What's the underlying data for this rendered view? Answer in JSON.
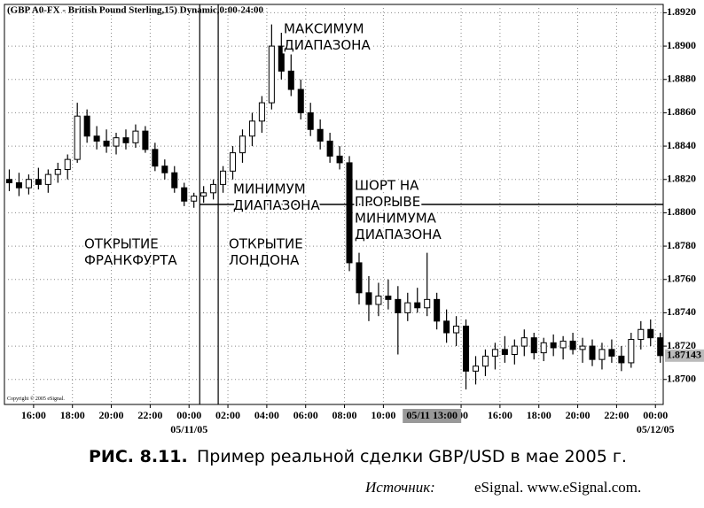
{
  "chart_data": {
    "type": "candlestick",
    "title": "(GBP A0-FX - British Pound Sterling,15) Dynamic,0:00-24:00",
    "copyright": "Copyright © 2005 eSignal.",
    "x": [
      14.75,
      15.25,
      15.75,
      16.25,
      16.75,
      17.25,
      17.75,
      18.25,
      18.75,
      19.25,
      19.75,
      20.25,
      20.75,
      21.25,
      21.75,
      22.25,
      22.75,
      23.25,
      23.75,
      24.25,
      24.75,
      25.25,
      25.75,
      26.25,
      26.75,
      27.25,
      27.75,
      28.25,
      28.75,
      29.25,
      29.75,
      30.25,
      30.75,
      31.25,
      31.75,
      32.25,
      32.75,
      33.25,
      33.75,
      34.25,
      34.75,
      35.25,
      35.75,
      36.25,
      36.75,
      37.25,
      37.75,
      38.25,
      38.75,
      39.25,
      39.75,
      40.25,
      40.75,
      41.25,
      41.75,
      42.25,
      42.75,
      43.25,
      43.75,
      44.25,
      44.75,
      45.25,
      45.75,
      46.25,
      46.75,
      47.25,
      47.75,
      48.25
    ],
    "open": [
      1.882,
      1.8818,
      1.8815,
      1.882,
      1.8817,
      1.8823,
      1.8826,
      1.8832,
      1.8858,
      1.8846,
      1.8843,
      1.884,
      1.8845,
      1.8842,
      1.8849,
      1.8838,
      1.8828,
      1.8824,
      1.8815,
      1.8807,
      1.881,
      1.8812,
      1.8817,
      1.8825,
      1.8836,
      1.8846,
      1.8855,
      1.8866,
      1.89,
      1.8885,
      1.8874,
      1.886,
      1.885,
      1.8843,
      1.8834,
      1.883,
      1.877,
      1.8752,
      1.8745,
      1.875,
      1.8748,
      1.874,
      1.8746,
      1.8743,
      1.8748,
      1.8735,
      1.8728,
      1.8732,
      1.8705,
      1.8708,
      1.8714,
      1.8718,
      1.8715,
      1.872,
      1.8725,
      1.8716,
      1.8722,
      1.8719,
      1.8723,
      1.8718,
      1.872,
      1.8712,
      1.8718,
      1.8714,
      1.871,
      1.8724,
      1.873,
      1.8725
    ],
    "high": [
      1.8826,
      1.8824,
      1.8823,
      1.8827,
      1.8826,
      1.883,
      1.8835,
      1.8866,
      1.8862,
      1.8852,
      1.885,
      1.8848,
      1.885,
      1.8853,
      1.8852,
      1.8842,
      1.8832,
      1.8828,
      1.8818,
      1.8812,
      1.8816,
      1.882,
      1.8828,
      1.884,
      1.885,
      1.886,
      1.887,
      1.8913,
      1.8908,
      1.8895,
      1.888,
      1.8866,
      1.8856,
      1.8848,
      1.884,
      1.8834,
      1.8776,
      1.8762,
      1.8758,
      1.876,
      1.8756,
      1.8752,
      1.8755,
      1.8776,
      1.8752,
      1.8742,
      1.8738,
      1.8736,
      1.8714,
      1.8718,
      1.8722,
      1.8726,
      1.8724,
      1.873,
      1.8728,
      1.8725,
      1.8727,
      1.8726,
      1.8728,
      1.8725,
      1.8724,
      1.8722,
      1.8724,
      1.872,
      1.8728,
      1.8735,
      1.8736,
      1.8728
    ],
    "low": [
      1.8813,
      1.881,
      1.8811,
      1.8814,
      1.8812,
      1.8818,
      1.882,
      1.883,
      1.8842,
      1.8838,
      1.8836,
      1.8835,
      1.8838,
      1.8839,
      1.8836,
      1.8825,
      1.882,
      1.8812,
      1.8804,
      1.8803,
      1.8806,
      1.8808,
      1.8812,
      1.882,
      1.883,
      1.884,
      1.8848,
      1.8862,
      1.888,
      1.887,
      1.8856,
      1.8846,
      1.8838,
      1.883,
      1.8826,
      1.8765,
      1.8745,
      1.8735,
      1.8738,
      1.8742,
      1.8715,
      1.8735,
      1.874,
      1.8738,
      1.873,
      1.8722,
      1.872,
      1.8694,
      1.8697,
      1.8702,
      1.8706,
      1.871,
      1.8709,
      1.8714,
      1.8712,
      1.8711,
      1.8714,
      1.8712,
      1.8715,
      1.871,
      1.8708,
      1.8706,
      1.871,
      1.8705,
      1.8707,
      1.8718,
      1.872,
      1.871
    ],
    "close": [
      1.8818,
      1.8815,
      1.882,
      1.8817,
      1.8823,
      1.8826,
      1.8832,
      1.8858,
      1.8846,
      1.8843,
      1.884,
      1.8845,
      1.8842,
      1.8849,
      1.8838,
      1.8828,
      1.8824,
      1.8815,
      1.8807,
      1.881,
      1.8812,
      1.8817,
      1.8825,
      1.8836,
      1.8846,
      1.8855,
      1.8866,
      1.89,
      1.8885,
      1.8874,
      1.886,
      1.885,
      1.8843,
      1.8834,
      1.883,
      1.877,
      1.8752,
      1.8745,
      1.875,
      1.8748,
      1.874,
      1.8746,
      1.8743,
      1.8748,
      1.8735,
      1.8728,
      1.8732,
      1.8705,
      1.8708,
      1.8714,
      1.8718,
      1.8715,
      1.872,
      1.8725,
      1.8716,
      1.8722,
      1.8719,
      1.8723,
      1.8718,
      1.872,
      1.8712,
      1.8718,
      1.8714,
      1.871,
      1.8724,
      1.873,
      1.8725,
      1.87143
    ],
    "xlim": [
      14.5,
      48.4
    ],
    "ylim": [
      1.8685,
      1.8925
    ],
    "xticks": [
      {
        "value": 16,
        "label": "16:00"
      },
      {
        "value": 18,
        "label": "18:00"
      },
      {
        "value": 20,
        "label": "20:00"
      },
      {
        "value": 22,
        "label": "22:00"
      },
      {
        "value": 24,
        "label": "00:00"
      },
      {
        "value": 26,
        "label": "02:00"
      },
      {
        "value": 28,
        "label": "04:00"
      },
      {
        "value": 30,
        "label": "06:00"
      },
      {
        "value": 32,
        "label": "08:00"
      },
      {
        "value": 34,
        "label": "10:00"
      },
      {
        "value": 38,
        "label": ":00"
      },
      {
        "value": 40,
        "label": "16:00"
      },
      {
        "value": 42,
        "label": "18:00"
      },
      {
        "value": 44,
        "label": "20:00"
      },
      {
        "value": 46,
        "label": "22:00"
      },
      {
        "value": 48,
        "label": "00:00"
      }
    ],
    "date_labels": [
      {
        "value": 24,
        "label": "05/11/05"
      },
      {
        "value": 48,
        "label": "05/12/05"
      }
    ],
    "cursor_label": {
      "value": 36.5,
      "label": "05/11 13:00"
    },
    "yticks": [
      {
        "value": 1.87,
        "label": "1.8700"
      },
      {
        "value": 1.872,
        "label": "1.8720"
      },
      {
        "value": 1.874,
        "label": "1.8740"
      },
      {
        "value": 1.876,
        "label": "1.8760"
      },
      {
        "value": 1.878,
        "label": "1.8780"
      },
      {
        "value": 1.88,
        "label": "1.8800"
      },
      {
        "value": 1.882,
        "label": "1.8820"
      },
      {
        "value": 1.884,
        "label": "1.8840"
      },
      {
        "value": 1.886,
        "label": "1.8860"
      },
      {
        "value": 1.888,
        "label": "1.8880"
      },
      {
        "value": 1.89,
        "label": "1.8900"
      },
      {
        "value": 1.892,
        "label": "1.8920"
      }
    ],
    "last_price": 1.87143,
    "vlines": [
      24.55,
      25.5
    ],
    "hline": {
      "y": 1.8805,
      "from": 24.55
    },
    "grid": true,
    "up_color": "#ffffff",
    "down_color": "#000000",
    "annotations": [
      [
        "МАКСИМУМ",
        "ДИАПАЗОНА"
      ],
      [
        "МИНИМУМ",
        "ДИАПАЗОНА"
      ],
      [
        "ШОРТ НА",
        "ПРОРЫВЕ",
        "МИНИМУМА",
        "ДИАПАЗОНА"
      ],
      [
        "ОТКРЫТИЕ",
        "ФРАНКФУРТА"
      ],
      [
        "ОТКРЫТИЕ",
        "ЛОНДОНА"
      ]
    ]
  },
  "caption": {
    "label": "РИС. 8.11.",
    "text": "Пример реальной сделки GBP/USD в мае 2005 г."
  },
  "source": {
    "label": "Источник:",
    "text": "eSignal. www.eSignal.com."
  }
}
